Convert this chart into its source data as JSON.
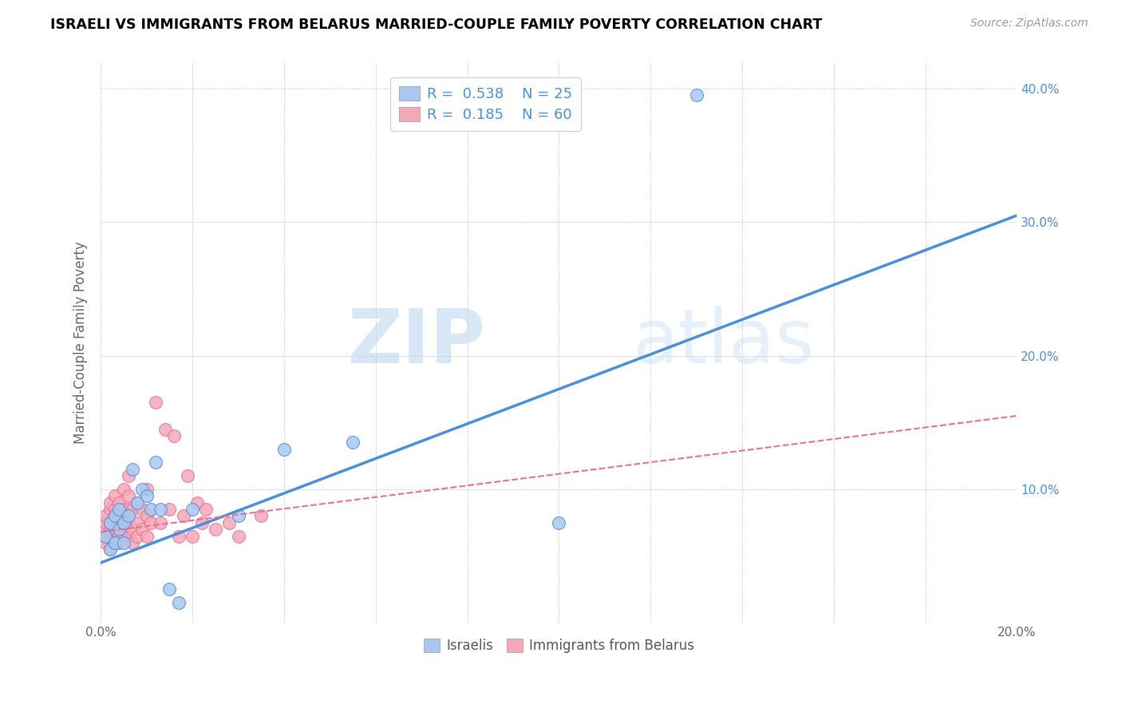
{
  "title": "ISRAELI VS IMMIGRANTS FROM BELARUS MARRIED-COUPLE FAMILY POVERTY CORRELATION CHART",
  "source": "Source: ZipAtlas.com",
  "ylabel": "Married-Couple Family Poverty",
  "xlim": [
    0.0,
    0.2
  ],
  "ylim": [
    0.0,
    0.42
  ],
  "xticks": [
    0.0,
    0.02,
    0.04,
    0.06,
    0.08,
    0.1,
    0.12,
    0.14,
    0.16,
    0.18,
    0.2
  ],
  "yticks": [
    0.0,
    0.1,
    0.2,
    0.3,
    0.4
  ],
  "ytick_labels": [
    "",
    "10.0%",
    "20.0%",
    "30.0%",
    "40.0%"
  ],
  "xtick_labels": [
    "0.0%",
    "",
    "",
    "",
    "",
    "",
    "",
    "",
    "",
    "",
    "20.0%"
  ],
  "legend_r1": "0.538",
  "legend_n1": "25",
  "legend_r2": "0.185",
  "legend_n2": "60",
  "label1": "Israelis",
  "label2": "Immigrants from Belarus",
  "color1": "#a8c8f0",
  "color2": "#f4a8b8",
  "line_color1": "#4a90d9",
  "line_color2": "#e87090",
  "watermark_zip": "ZIP",
  "watermark_atlas": "atlas",
  "israelis_x": [
    0.001,
    0.002,
    0.002,
    0.003,
    0.003,
    0.004,
    0.004,
    0.005,
    0.005,
    0.006,
    0.007,
    0.008,
    0.009,
    0.01,
    0.011,
    0.012,
    0.013,
    0.015,
    0.017,
    0.02,
    0.03,
    0.04,
    0.055,
    0.1,
    0.13
  ],
  "israelis_y": [
    0.065,
    0.055,
    0.075,
    0.06,
    0.08,
    0.07,
    0.085,
    0.06,
    0.075,
    0.08,
    0.115,
    0.09,
    0.1,
    0.095,
    0.085,
    0.12,
    0.085,
    0.025,
    0.015,
    0.085,
    0.08,
    0.13,
    0.135,
    0.075,
    0.395
  ],
  "belarus_x": [
    0.001,
    0.001,
    0.001,
    0.001,
    0.001,
    0.002,
    0.002,
    0.002,
    0.002,
    0.002,
    0.002,
    0.003,
    0.003,
    0.003,
    0.003,
    0.003,
    0.003,
    0.004,
    0.004,
    0.004,
    0.004,
    0.004,
    0.005,
    0.005,
    0.005,
    0.005,
    0.005,
    0.006,
    0.006,
    0.006,
    0.006,
    0.006,
    0.007,
    0.007,
    0.007,
    0.008,
    0.008,
    0.008,
    0.009,
    0.009,
    0.01,
    0.01,
    0.01,
    0.011,
    0.012,
    0.013,
    0.014,
    0.015,
    0.016,
    0.017,
    0.018,
    0.019,
    0.02,
    0.021,
    0.022,
    0.023,
    0.025,
    0.028,
    0.03,
    0.035
  ],
  "belarus_y": [
    0.06,
    0.065,
    0.07,
    0.075,
    0.08,
    0.055,
    0.065,
    0.07,
    0.075,
    0.085,
    0.09,
    0.06,
    0.065,
    0.07,
    0.08,
    0.085,
    0.095,
    0.06,
    0.065,
    0.075,
    0.08,
    0.09,
    0.065,
    0.07,
    0.075,
    0.085,
    0.1,
    0.065,
    0.075,
    0.085,
    0.095,
    0.11,
    0.06,
    0.07,
    0.085,
    0.065,
    0.075,
    0.09,
    0.07,
    0.085,
    0.065,
    0.08,
    0.1,
    0.075,
    0.165,
    0.075,
    0.145,
    0.085,
    0.14,
    0.065,
    0.08,
    0.11,
    0.065,
    0.09,
    0.075,
    0.085,
    0.07,
    0.075,
    0.065,
    0.08
  ],
  "line1_x": [
    0.0,
    0.2
  ],
  "line1_y": [
    0.045,
    0.305
  ],
  "line2_x": [
    0.0,
    0.2
  ],
  "line2_y": [
    0.068,
    0.155
  ]
}
